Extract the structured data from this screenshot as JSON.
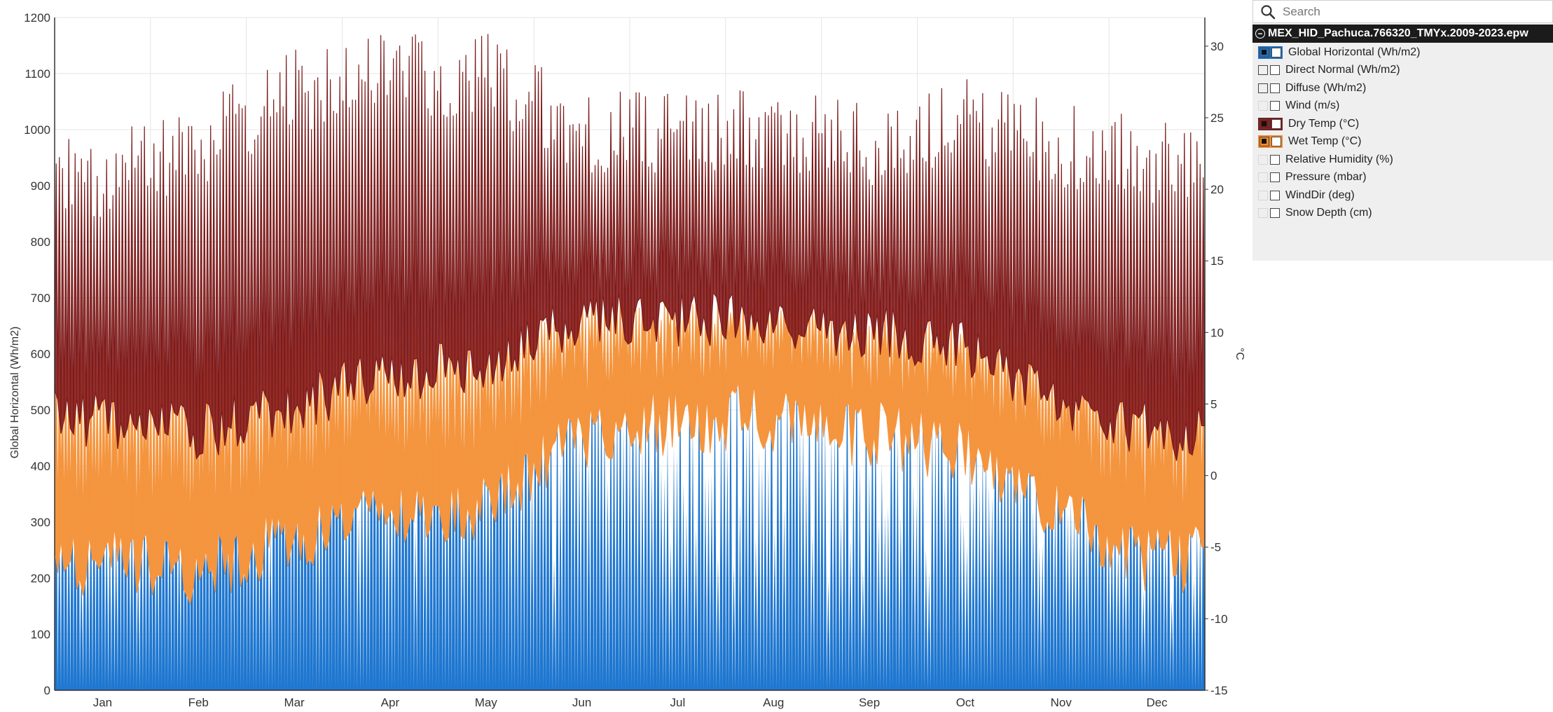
{
  "chart_data": {
    "type": "area",
    "x_axis": {
      "labels": [
        "Jan",
        "Feb",
        "Mar",
        "Apr",
        "May",
        "Jun",
        "Jul",
        "Aug",
        "Sep",
        "Oct",
        "Nov",
        "Dec"
      ]
    },
    "y_left": {
      "label": "Global Horizontal (Wh/m2)",
      "range": [
        0,
        1200
      ],
      "ticks": [
        0,
        100,
        200,
        300,
        400,
        500,
        600,
        700,
        800,
        900,
        1000,
        1100,
        1200
      ]
    },
    "y_right": {
      "label": "°C",
      "range": [
        -15,
        32
      ],
      "ticks": [
        -15,
        -10,
        -5,
        0,
        5,
        10,
        15,
        20,
        25,
        30
      ]
    },
    "grid": true,
    "series": [
      {
        "name": "Global Horizontal (Wh/m2)",
        "axis": "left",
        "color": "#1f77d0",
        "daily_peak_by_month": [
          500,
          720,
          770,
          810,
          770,
          680,
          680,
          660,
          640,
          640,
          560,
          500
        ]
      },
      {
        "name": "Dry Temp (°C)",
        "axis": "right",
        "color": "#8b2323",
        "daily_max_by_month": [
          21,
          23,
          27,
          28,
          28,
          24,
          24,
          24,
          23,
          25,
          23,
          22
        ],
        "daily_min_by_month": [
          4,
          3,
          5,
          7,
          8,
          11,
          11,
          11,
          10,
          9,
          5,
          3
        ]
      },
      {
        "name": "Wet Temp (°C)",
        "axis": "right",
        "color": "#f4953f",
        "daily_max_by_month": [
          8,
          9,
          10,
          10,
          11,
          12,
          12,
          12,
          11,
          11,
          9,
          7
        ],
        "daily_min_by_month": [
          -2,
          -3,
          0,
          1,
          2,
          7,
          8,
          8,
          7,
          6,
          1,
          -2
        ]
      }
    ]
  },
  "panel": {
    "search_placeholder": "Search",
    "file_name": "MEX_HID_Pachuca.766320_TMYx.2009-2023.epw",
    "series": [
      {
        "label": "Global Horizontal (Wh/m2)",
        "axis_on": true,
        "plot_on": false,
        "color": "#1f6fbf"
      },
      {
        "label": "Direct Normal (Wh/m2)",
        "axis_on": false,
        "plot_on": false,
        "color": ""
      },
      {
        "label": "Diffuse (Wh/m2)",
        "axis_on": false,
        "plot_on": false,
        "color": ""
      },
      {
        "label": "Wind (m/s)",
        "axis_on": false,
        "plot_on": false,
        "color": ""
      },
      {
        "label": "Dry Temp (°C)",
        "axis_on": true,
        "plot_on": false,
        "color": "#7a1c1c"
      },
      {
        "label": "Wet Temp (°C)",
        "axis_on": true,
        "plot_on": false,
        "color": "#f08a2c"
      },
      {
        "label": "Relative Humidity (%)",
        "axis_on": false,
        "plot_on": false,
        "color": ""
      },
      {
        "label": "Pressure (mbar)",
        "axis_on": false,
        "plot_on": false,
        "color": ""
      },
      {
        "label": "WindDir (deg)",
        "axis_on": false,
        "plot_on": false,
        "color": ""
      },
      {
        "label": "Snow Depth (cm)",
        "axis_on": false,
        "plot_on": false,
        "color": ""
      }
    ]
  }
}
